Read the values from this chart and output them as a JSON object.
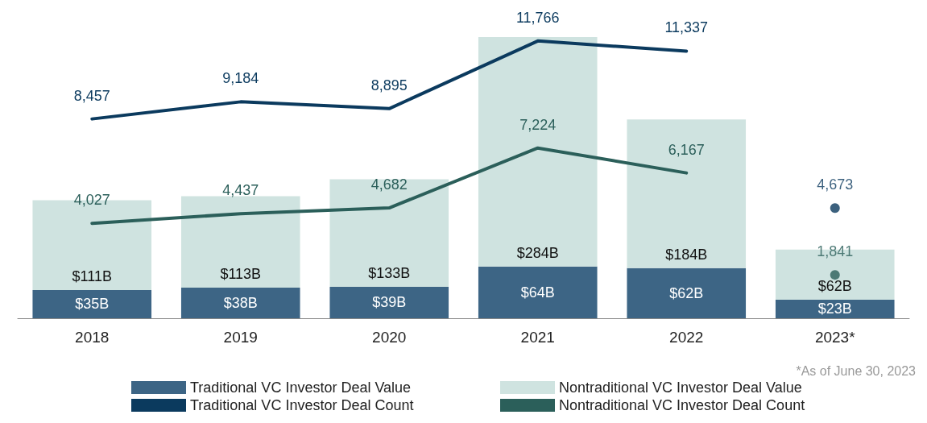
{
  "chart_data": {
    "type": "bar",
    "stacked": true,
    "tick_labels": "x",
    "grid": false,
    "legend": "bottom",
    "categories": [
      "2018",
      "2019",
      "2020",
      "2021",
      "2022",
      "2023*"
    ],
    "series": [
      {
        "name": "Traditional VC Investor Deal Value",
        "color": "#3d6585",
        "values": [
          35,
          38,
          39,
          64,
          62,
          23
        ],
        "value_labels": [
          "$35B",
          "$38B",
          "$39B",
          "$64B",
          "$62B",
          "$23B"
        ]
      },
      {
        "name": "Nontraditional VC Investor Deal Value",
        "color": "#cfe3e0",
        "values": [
          111,
          113,
          133,
          284,
          184,
          62
        ],
        "value_labels": [
          "$111B",
          "$113B",
          "$133B",
          "$284B",
          "$184B",
          "$62B"
        ]
      },
      {
        "name": "Traditional VC Investor Deal Count",
        "type": "line",
        "axis": "y2",
        "marker": "none",
        "color": "#0b3a5e",
        "values": [
          8457,
          9184,
          8895,
          11766,
          11337,
          null
        ],
        "value_labels": [
          "8,457",
          "9,184",
          "8,895",
          "11,766",
          "11,337",
          null
        ]
      },
      {
        "name": "Nontraditional VC Investor Deal Count",
        "type": "line",
        "axis": "y2",
        "marker": "none",
        "color": "#2b5f5a",
        "values": [
          4027,
          4437,
          4682,
          7224,
          6167,
          null
        ],
        "value_labels": [
          "4,027",
          "4,437",
          "4,682",
          "7,224",
          "6,167",
          null
        ]
      },
      {
        "type": "scatter",
        "axis": "y2",
        "marker": "circle",
        "color": "#0b3a5e",
        "values": [
          null,
          null,
          null,
          null,
          null,
          4673
        ],
        "value_labels": [
          null,
          null,
          null,
          null,
          null,
          "4,673"
        ]
      },
      {
        "type": "scatter",
        "axis": "y2",
        "marker": "circle",
        "color": "#2b5f5a",
        "values": [
          null,
          null,
          null,
          null,
          null,
          1841
        ],
        "value_labels": [
          null,
          null,
          null,
          null,
          null,
          "1,841"
        ]
      }
    ],
    "annotations": [
      "*As of June 30, 2023"
    ]
  }
}
